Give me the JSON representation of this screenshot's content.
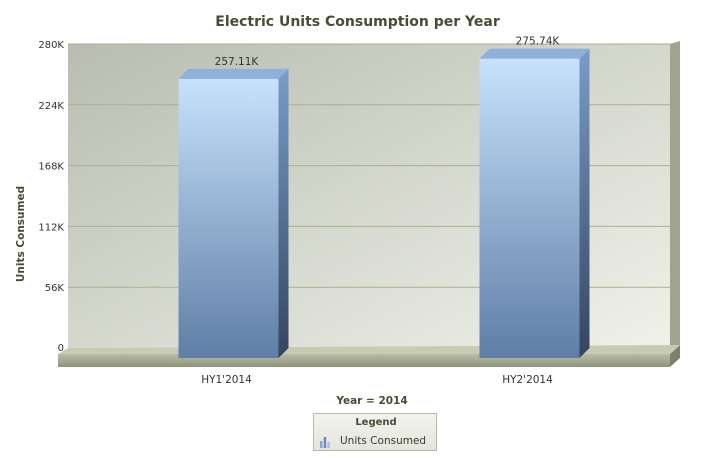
{
  "chart_data": {
    "type": "bar",
    "title": "Electric Units Consumption per Year",
    "xlabel": "Year = 2014",
    "ylabel": "Units Consumed",
    "categories": [
      "HY1'2014",
      "HY2'2014"
    ],
    "series": [
      {
        "name": "Units Consumed",
        "values": [
          257110,
          275740
        ],
        "data_labels": [
          "257.11K",
          "275.74K"
        ]
      }
    ],
    "ylim": [
      0,
      280000
    ],
    "yticks": [
      0,
      56000,
      112000,
      168000,
      224000,
      280000
    ],
    "ytick_labels": [
      "0",
      "56K",
      "112K",
      "168K",
      "224K",
      "280K"
    ],
    "grid": true,
    "legend": {
      "title": "Legend",
      "placement": "bottom-center"
    },
    "style": "3d",
    "colors": {
      "bar_top": "#c8e2fc",
      "bar_bottom": "#5f7ea6",
      "grid": "#a9b08f",
      "title": "#4a4a36"
    }
  }
}
